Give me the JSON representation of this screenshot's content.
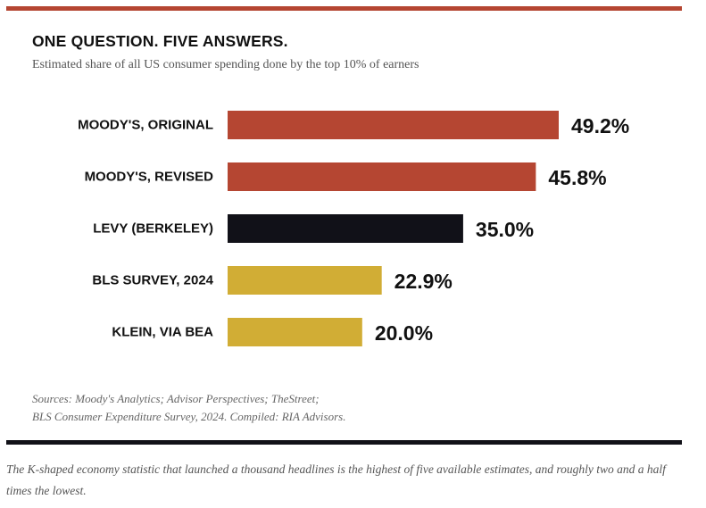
{
  "header": {
    "title": "ONE QUESTION. FIVE ANSWERS.",
    "subtitle": "Estimated share of all US consumer spending done by the top 10% of earners"
  },
  "colors": {
    "accent": "#b54632",
    "dark": "#111118",
    "gold": "#d1ad35"
  },
  "chart_data": {
    "type": "bar",
    "orientation": "horizontal",
    "title": "ONE QUESTION. FIVE ANSWERS.",
    "subtitle": "Estimated share of all US consumer spending done by the top 10% of earners",
    "xlabel": "",
    "ylabel": "",
    "xlim": [
      0,
      49.2
    ],
    "grid": false,
    "legend": "none",
    "categories": [
      "MOODY'S, ORIGINAL",
      "MOODY'S, REVISED",
      "LEVY (BERKELEY)",
      "BLS SURVEY, 2024",
      "KLEIN, VIA BEA"
    ],
    "values": [
      49.2,
      45.8,
      35.0,
      22.9,
      20.0
    ],
    "value_labels": [
      "49.2%",
      "45.8%",
      "35.0%",
      "22.9%",
      "20.0%"
    ],
    "bar_colors": [
      "#b54632",
      "#b54632",
      "#111118",
      "#d1ad35",
      "#d1ad35"
    ]
  },
  "footer": {
    "sources_line1": "Sources: Moody's Analytics; Advisor Perspectives; TheStreet;",
    "sources_line2": "BLS Consumer Expenditure Survey, 2024. Compiled: RIA Advisors.",
    "caption": "The K-shaped economy statistic that launched a thousand headlines is the highest of five available estimates, and roughly two and a half times the lowest."
  }
}
